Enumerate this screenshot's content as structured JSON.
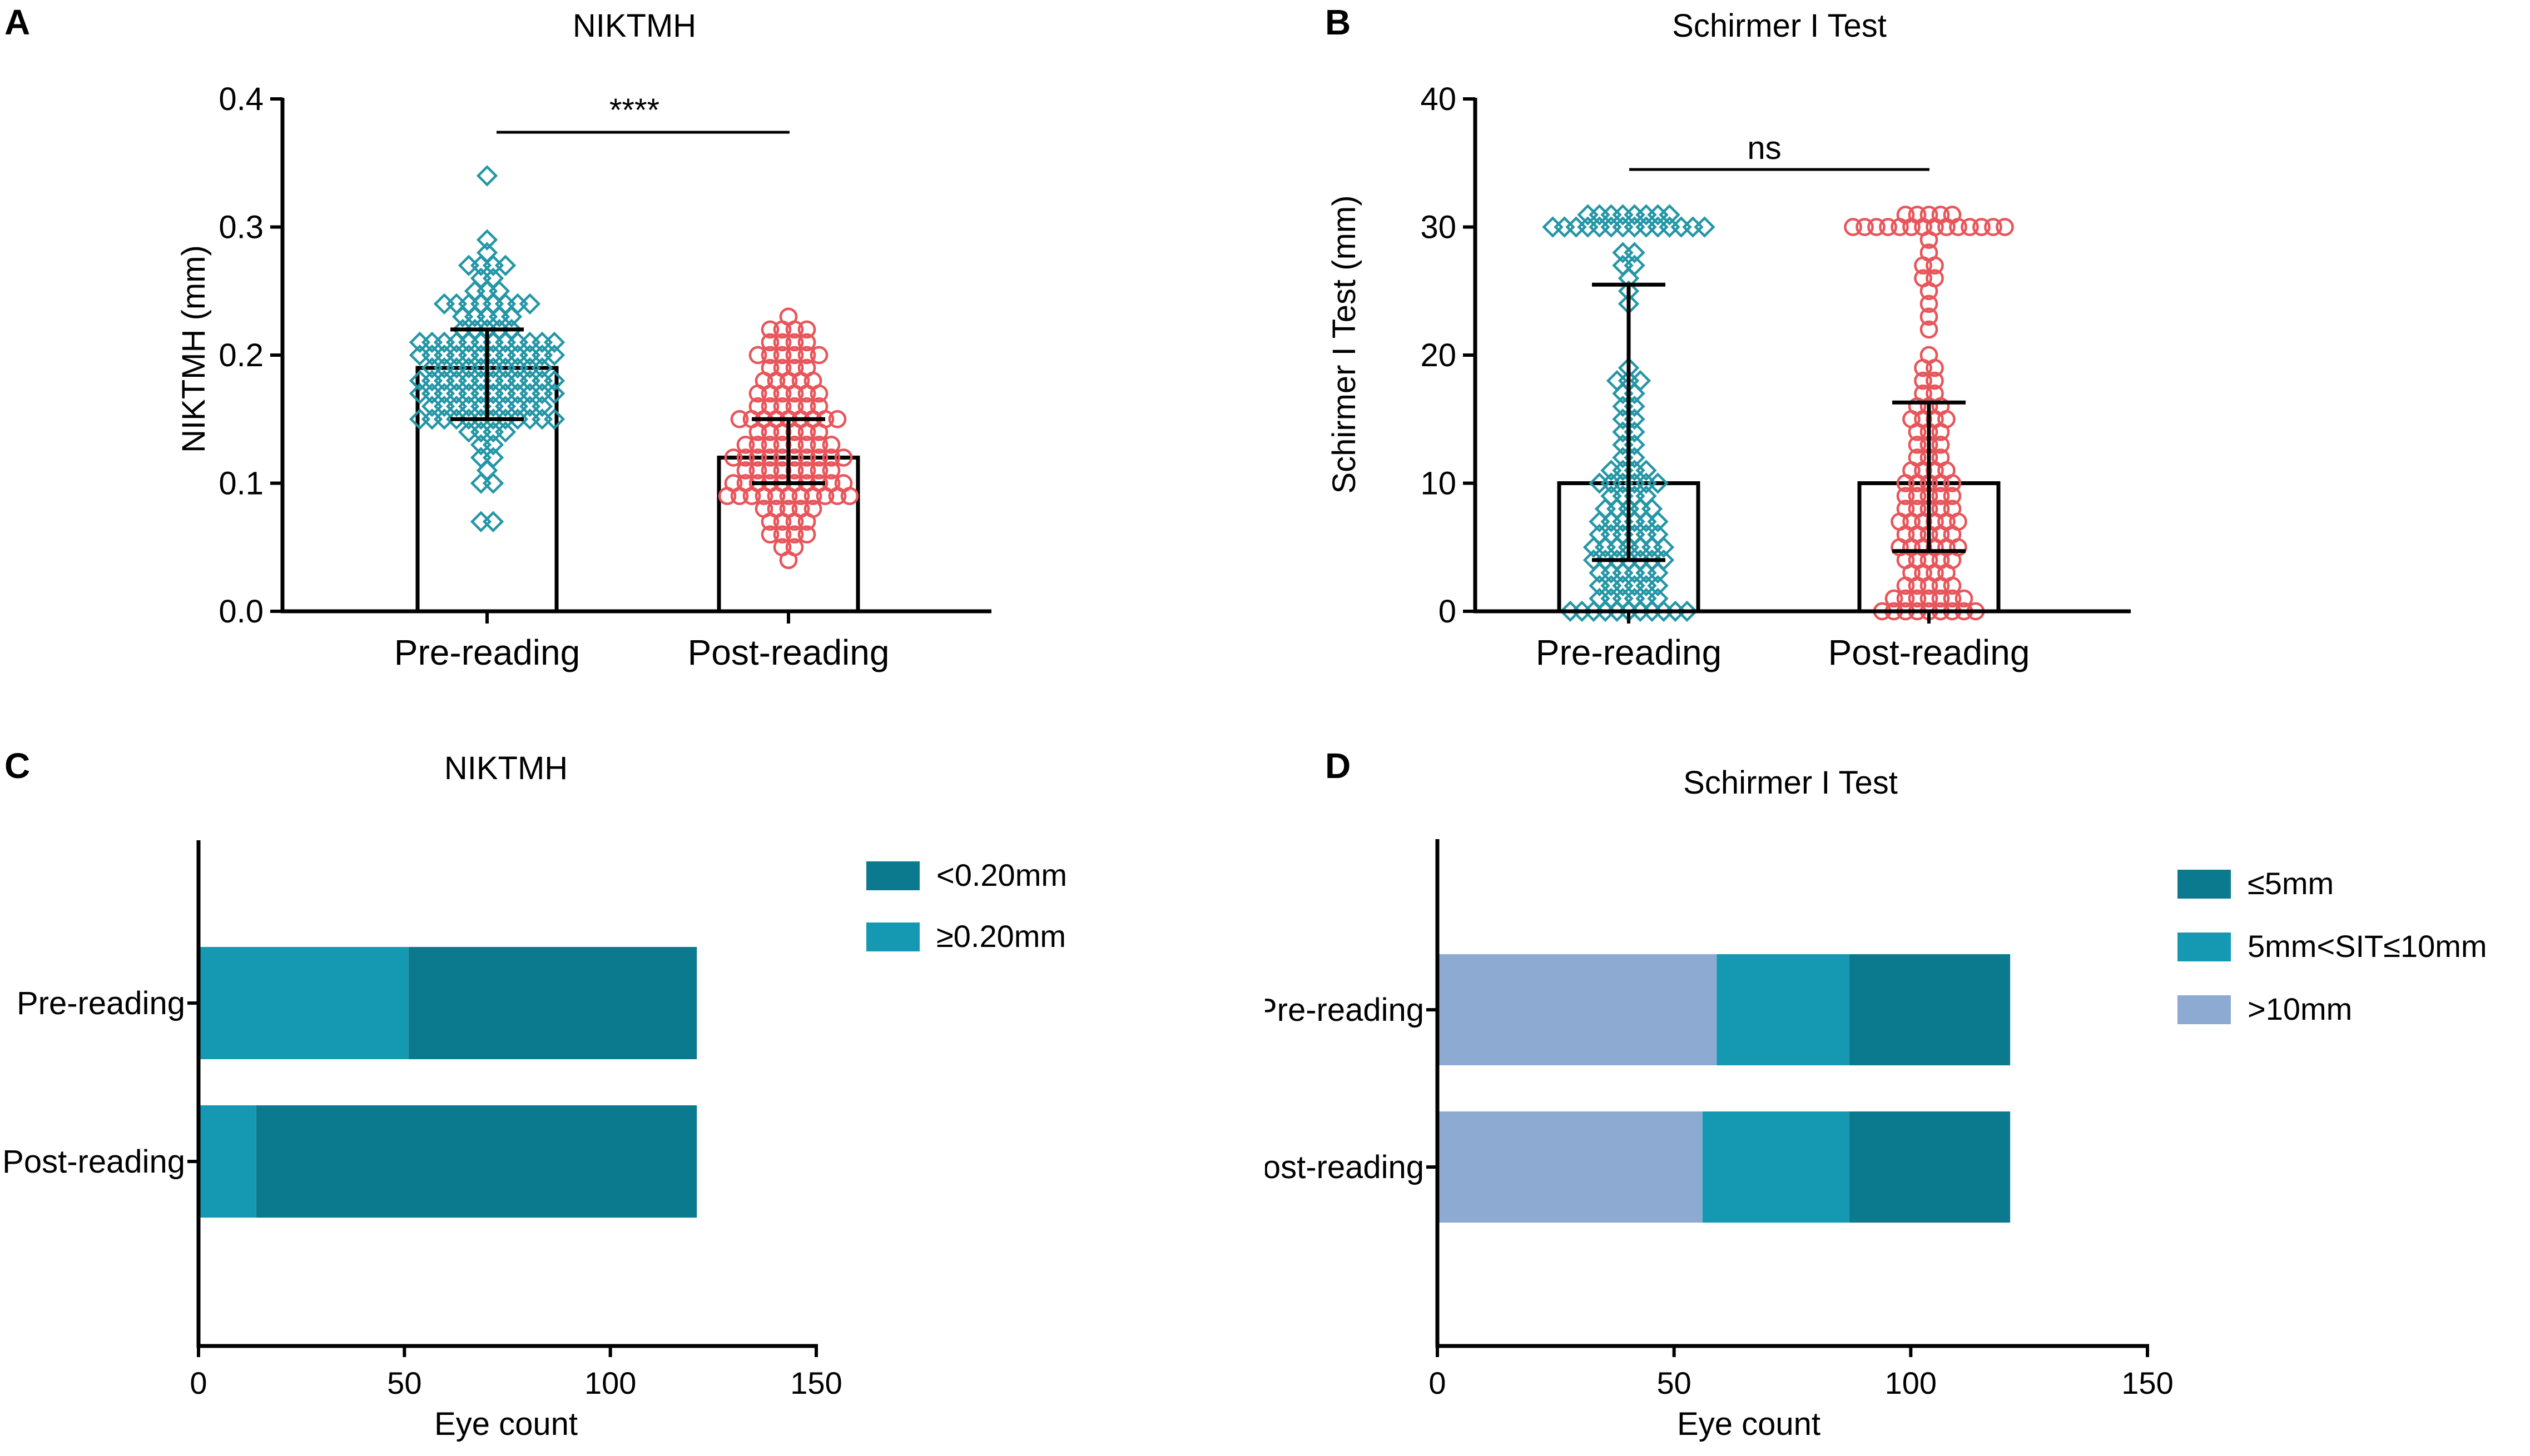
{
  "colors": {
    "axis": "#000000",
    "pre_marker": "#2496A6",
    "post_marker": "#E8555A",
    "dark_teal": "#0B7A8E",
    "light_teal": "#1599B2",
    "lavender": "#8DAAD3"
  },
  "chart_data": [
    {
      "panel": "A",
      "type": "bar",
      "title": "NIKTMH",
      "xlabel": "",
      "ylabel": "NIKTMH (mm)",
      "categories": [
        "Pre-reading",
        "Post-reading"
      ],
      "ylim": [
        0,
        0.4
      ],
      "yticks": [
        0.0,
        0.1,
        0.2,
        0.3,
        0.4
      ],
      "ytick_labels": [
        "0.0",
        "0.1",
        "0.2",
        "0.3",
        "0.4"
      ],
      "series": [
        {
          "name": "mean",
          "values": [
            0.19,
            0.12
          ]
        }
      ],
      "error_bars": [
        {
          "low": 0.15,
          "high": 0.22
        },
        {
          "low": 0.1,
          "high": 0.15
        }
      ],
      "significance": "****",
      "points": [
        [
          0.34,
          0.29,
          0.28,
          0.27,
          0.27,
          0.27,
          0.27,
          0.26,
          0.26,
          0.25,
          0.25,
          0.25,
          0.24,
          0.24,
          0.24,
          0.24,
          0.24,
          0.24,
          0.24,
          0.24,
          0.23,
          0.23,
          0.23,
          0.23,
          0.23,
          0.22,
          0.22,
          0.22,
          0.22,
          0.22,
          0.21,
          0.21,
          0.21,
          0.21,
          0.21,
          0.21,
          0.21,
          0.21,
          0.21,
          0.21,
          0.21,
          0.21,
          0.2,
          0.2,
          0.2,
          0.2,
          0.2,
          0.2,
          0.2,
          0.2,
          0.2,
          0.2,
          0.2,
          0.2,
          0.19,
          0.19,
          0.19,
          0.19,
          0.19,
          0.19,
          0.19,
          0.19,
          0.19,
          0.19,
          0.18,
          0.18,
          0.18,
          0.18,
          0.18,
          0.18,
          0.18,
          0.18,
          0.18,
          0.18,
          0.18,
          0.18,
          0.17,
          0.17,
          0.17,
          0.17,
          0.17,
          0.17,
          0.17,
          0.17,
          0.17,
          0.17,
          0.17,
          0.17,
          0.16,
          0.16,
          0.16,
          0.16,
          0.16,
          0.16,
          0.16,
          0.16,
          0.16,
          0.16,
          0.15,
          0.15,
          0.15,
          0.15,
          0.15,
          0.15,
          0.15,
          0.15,
          0.15,
          0.15,
          0.15,
          0.15,
          0.14,
          0.14,
          0.14,
          0.14,
          0.13,
          0.13,
          0.12,
          0.12,
          0.11,
          0.1,
          0.1,
          0.07,
          0.07
        ],
        [
          0.23,
          0.22,
          0.22,
          0.22,
          0.22,
          0.21,
          0.21,
          0.21,
          0.21,
          0.2,
          0.2,
          0.2,
          0.2,
          0.2,
          0.2,
          0.19,
          0.19,
          0.19,
          0.19,
          0.18,
          0.18,
          0.18,
          0.18,
          0.18,
          0.17,
          0.17,
          0.17,
          0.17,
          0.17,
          0.17,
          0.16,
          0.16,
          0.16,
          0.16,
          0.16,
          0.16,
          0.15,
          0.15,
          0.15,
          0.15,
          0.15,
          0.15,
          0.15,
          0.15,
          0.15,
          0.14,
          0.14,
          0.14,
          0.14,
          0.14,
          0.14,
          0.13,
          0.13,
          0.13,
          0.13,
          0.13,
          0.13,
          0.13,
          0.13,
          0.12,
          0.12,
          0.12,
          0.12,
          0.12,
          0.12,
          0.12,
          0.12,
          0.12,
          0.12,
          0.11,
          0.11,
          0.11,
          0.11,
          0.11,
          0.11,
          0.11,
          0.11,
          0.1,
          0.1,
          0.1,
          0.1,
          0.1,
          0.1,
          0.1,
          0.1,
          0.1,
          0.1,
          0.09,
          0.09,
          0.09,
          0.09,
          0.09,
          0.09,
          0.09,
          0.09,
          0.09,
          0.09,
          0.09,
          0.08,
          0.08,
          0.08,
          0.08,
          0.08,
          0.07,
          0.07,
          0.07,
          0.07,
          0.06,
          0.06,
          0.06,
          0.06,
          0.05,
          0.05,
          0.04
        ]
      ]
    },
    {
      "panel": "B",
      "type": "bar",
      "title": "Schirmer I Test",
      "xlabel": "",
      "ylabel": "Schirmer I Test (mm)",
      "categories": [
        "Pre-reading",
        "Post-reading"
      ],
      "ylim": [
        0,
        40
      ],
      "yticks": [
        0,
        10,
        20,
        30,
        40
      ],
      "ytick_labels": [
        "0",
        "10",
        "20",
        "30",
        "40"
      ],
      "series": [
        {
          "name": "mean",
          "values": [
            10,
            10
          ]
        }
      ],
      "error_bars": [
        {
          "low": 4,
          "high": 25.5
        },
        {
          "low": 4.7,
          "high": 16.3
        }
      ],
      "significance": "ns",
      "points": [
        [
          30,
          30,
          30,
          30,
          30,
          30,
          30,
          30,
          30,
          30,
          30,
          30,
          30,
          30,
          30,
          30,
          30,
          30,
          30,
          30,
          30,
          30,
          28,
          28,
          27,
          27,
          26,
          25,
          24,
          19,
          18,
          18,
          18,
          17,
          17,
          16,
          16,
          15,
          15,
          14,
          14,
          13,
          13,
          12,
          12,
          11,
          11,
          11,
          11,
          10,
          10,
          10,
          10,
          10,
          10,
          9,
          9,
          9,
          9,
          8,
          8,
          8,
          8,
          8,
          7,
          7,
          7,
          7,
          7,
          7,
          6,
          6,
          6,
          6,
          6,
          6,
          5,
          5,
          5,
          5,
          5,
          5,
          5,
          4,
          4,
          4,
          4,
          4,
          4,
          4,
          3,
          3,
          3,
          3,
          3,
          3,
          2,
          2,
          2,
          2,
          2,
          2,
          1,
          1,
          1,
          1,
          1,
          1,
          0,
          0,
          0,
          0,
          0,
          0,
          0,
          0,
          0,
          0,
          0
        ],
        [
          30,
          30,
          30,
          30,
          30,
          30,
          30,
          30,
          30,
          30,
          30,
          30,
          30,
          30,
          30,
          30,
          30,
          30,
          30,
          29,
          28,
          27,
          27,
          26,
          26,
          25,
          24,
          23,
          22,
          20,
          19,
          19,
          18,
          18,
          17,
          17,
          16,
          16,
          16,
          15,
          15,
          15,
          15,
          14,
          14,
          14,
          13,
          13,
          13,
          12,
          12,
          12,
          11,
          11,
          11,
          11,
          10,
          10,
          10,
          10,
          10,
          9,
          9,
          9,
          9,
          9,
          8,
          8,
          8,
          8,
          8,
          7,
          7,
          7,
          7,
          7,
          7,
          6,
          6,
          6,
          6,
          6,
          5,
          5,
          5,
          5,
          5,
          5,
          4,
          4,
          4,
          4,
          4,
          3,
          3,
          3,
          3,
          2,
          2,
          2,
          2,
          2,
          1,
          1,
          1,
          1,
          1,
          1,
          1,
          0,
          0,
          0,
          0,
          0,
          0,
          0,
          0,
          0
        ]
      ]
    },
    {
      "panel": "C",
      "type": "bar",
      "orientation": "horizontal",
      "stacked": true,
      "title": "NIKTMH",
      "xlabel": "Eye count",
      "ylabel": "",
      "categories": [
        "Pre-reading",
        "Post-reading"
      ],
      "xlim": [
        0,
        150
      ],
      "xticks": [
        0,
        50,
        100,
        150
      ],
      "xtick_labels": [
        "0",
        "50",
        "100",
        "150"
      ],
      "series": [
        {
          "name": "≥0.20mm",
          "values": [
            51,
            14
          ]
        },
        {
          "name": "<0.20mm",
          "values": [
            70,
            107
          ]
        }
      ],
      "legend": [
        "<0.20mm",
        "≥0.20mm"
      ],
      "legend_position": "top-right"
    },
    {
      "panel": "D",
      "type": "bar",
      "orientation": "horizontal",
      "stacked": true,
      "title": "Schirmer I Test",
      "xlabel": "Eye count",
      "ylabel": "",
      "categories": [
        "Pre-reading",
        "Post-reading"
      ],
      "xlim": [
        0,
        150
      ],
      "xticks": [
        0,
        50,
        100,
        150
      ],
      "xtick_labels": [
        "0",
        "50",
        "100",
        "150"
      ],
      "series": [
        {
          "name": ">10mm",
          "values": [
            59,
            56
          ]
        },
        {
          "name": "5mm<SIT≤10mm",
          "values": [
            28,
            31
          ]
        },
        {
          "name": "≤5mm",
          "values": [
            34,
            34
          ]
        }
      ],
      "legend": [
        "≤5mm",
        "5mm<SIT≤10mm",
        ">10mm"
      ],
      "legend_position": "top-right"
    }
  ]
}
